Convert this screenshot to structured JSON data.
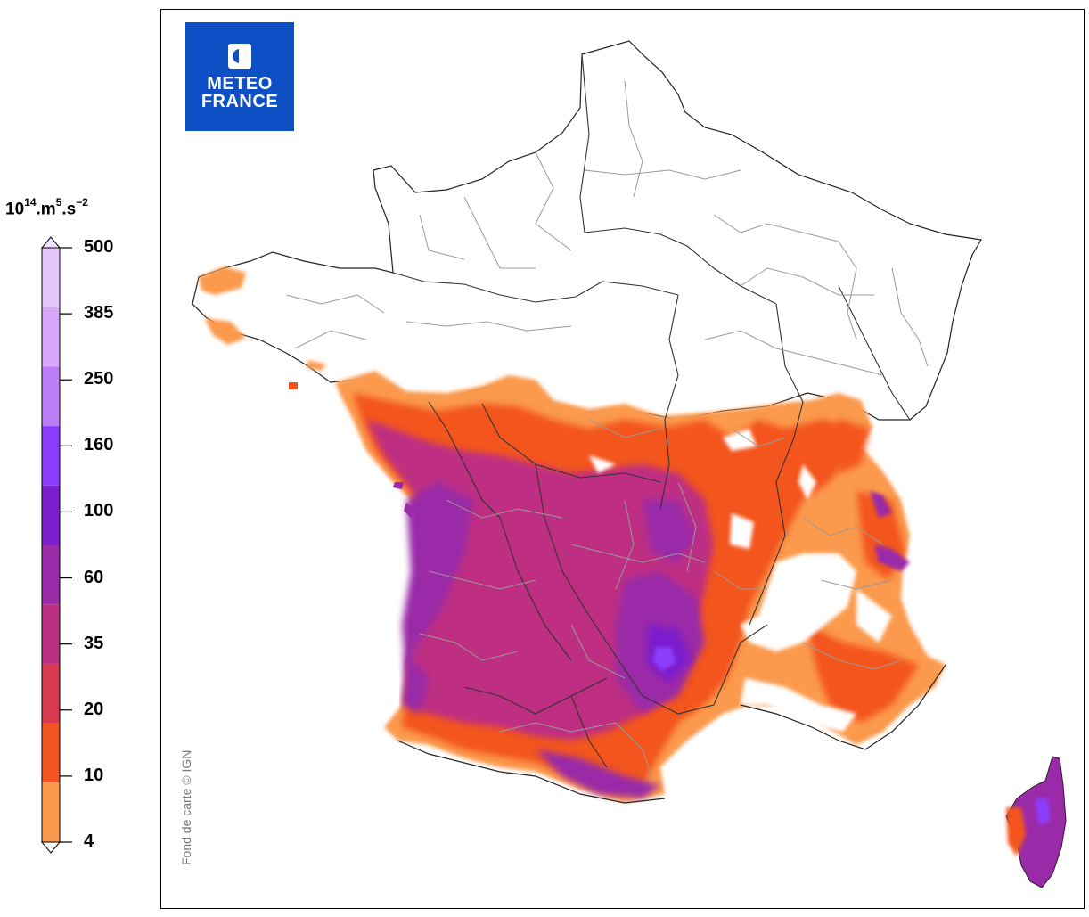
{
  "legend": {
    "unit_base": "10",
    "unit_exp1": "14",
    "unit_mid": ".m",
    "unit_exp2": "5",
    "unit_mid2": ".s",
    "unit_exp3": "−2",
    "labels": [
      "500",
      "385",
      "250",
      "160",
      "100",
      "60",
      "35",
      "20",
      "10",
      "4"
    ],
    "colors": [
      "#e4c8fb",
      "#d8a6fa",
      "#bc7cf7",
      "#8c3cfa",
      "#7b1fce",
      "#9a2ba8",
      "#be2f83",
      "#d8394f",
      "#f3541f",
      "#fb9a4d"
    ]
  },
  "logo": {
    "line1": "METEO",
    "line2": "FRANCE",
    "color": "#0d4fc4"
  },
  "credit": "Fond de carte © IGN"
}
